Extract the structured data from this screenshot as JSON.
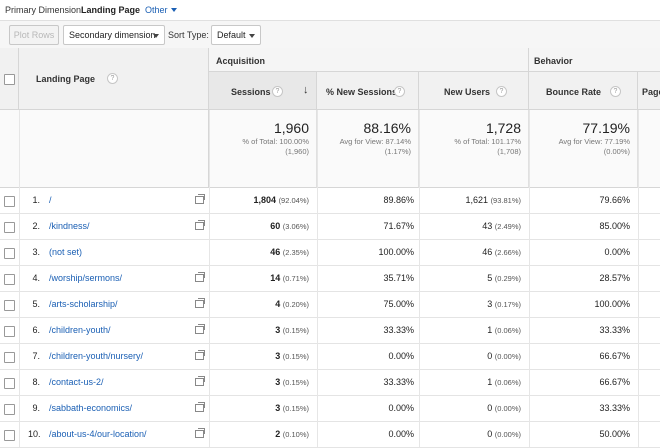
{
  "dimension_bar": {
    "label": "Primary Dimension:",
    "current": "Landing Page",
    "other": "Other"
  },
  "toolbar": {
    "plot_rows": "Plot Rows",
    "secondary_dimension": "Secondary dimension",
    "sort_type_label": "Sort Type:",
    "sort_type_value": "Default"
  },
  "header": {
    "landing_page": "Landing Page",
    "group_acquisition": "Acquisition",
    "group_behavior": "Behavior",
    "sessions": "Sessions",
    "new_sessions": "% New Sessions",
    "new_users": "New Users",
    "bounce_rate": "Bounce Rate",
    "pages": "Page",
    "help": "?",
    "sort_arrow": "↓"
  },
  "totals": {
    "sessions": {
      "value": "1,960",
      "line1": "% of Total: 100.00%",
      "line2": "(1,960)"
    },
    "new_sessions": {
      "value": "88.16%",
      "line1": "Avg for View: 87.14%",
      "line2": "(1.17%)"
    },
    "new_users": {
      "value": "1,728",
      "line1": "% of Total: 101.17%",
      "line2": "(1,708)"
    },
    "bounce_rate": {
      "value": "77.19%",
      "line1": "Avg for View: 77.19%",
      "line2": "(0.00%)"
    }
  },
  "rows": [
    {
      "num": "1.",
      "page": "/",
      "sessions": "1,804",
      "sessions_pct": "(92.04%)",
      "new_sessions": "89.86%",
      "new_users": "1,621",
      "new_users_pct": "(93.81%)",
      "bounce": "79.66%"
    },
    {
      "num": "2.",
      "page": "/kindness/",
      "sessions": "60",
      "sessions_pct": "(3.06%)",
      "new_sessions": "71.67%",
      "new_users": "43",
      "new_users_pct": "(2.49%)",
      "bounce": "85.00%"
    },
    {
      "num": "3.",
      "page": "(not set)",
      "sessions": "46",
      "sessions_pct": "(2.35%)",
      "new_sessions": "100.00%",
      "new_users": "46",
      "new_users_pct": "(2.66%)",
      "bounce": "0.00%"
    },
    {
      "num": "4.",
      "page": "/worship/sermons/",
      "sessions": "14",
      "sessions_pct": "(0.71%)",
      "new_sessions": "35.71%",
      "new_users": "5",
      "new_users_pct": "(0.29%)",
      "bounce": "28.57%"
    },
    {
      "num": "5.",
      "page": "/arts-scholarship/",
      "sessions": "4",
      "sessions_pct": "(0.20%)",
      "new_sessions": "75.00%",
      "new_users": "3",
      "new_users_pct": "(0.17%)",
      "bounce": "100.00%"
    },
    {
      "num": "6.",
      "page": "/children-youth/",
      "sessions": "3",
      "sessions_pct": "(0.15%)",
      "new_sessions": "33.33%",
      "new_users": "1",
      "new_users_pct": "(0.06%)",
      "bounce": "33.33%"
    },
    {
      "num": "7.",
      "page": "/children-youth/nursery/",
      "sessions": "3",
      "sessions_pct": "(0.15%)",
      "new_sessions": "0.00%",
      "new_users": "0",
      "new_users_pct": "(0.00%)",
      "bounce": "66.67%"
    },
    {
      "num": "8.",
      "page": "/contact-us-2/",
      "sessions": "3",
      "sessions_pct": "(0.15%)",
      "new_sessions": "33.33%",
      "new_users": "1",
      "new_users_pct": "(0.06%)",
      "bounce": "66.67%"
    },
    {
      "num": "9.",
      "page": "/sabbath-economics/",
      "sessions": "3",
      "sessions_pct": "(0.15%)",
      "new_sessions": "0.00%",
      "new_users": "0",
      "new_users_pct": "(0.00%)",
      "bounce": "33.33%"
    },
    {
      "num": "10.",
      "page": "/about-us-4/our-location/",
      "sessions": "2",
      "sessions_pct": "(0.10%)",
      "new_sessions": "0.00%",
      "new_users": "0",
      "new_users_pct": "(0.00%)",
      "bounce": "50.00%"
    }
  ]
}
